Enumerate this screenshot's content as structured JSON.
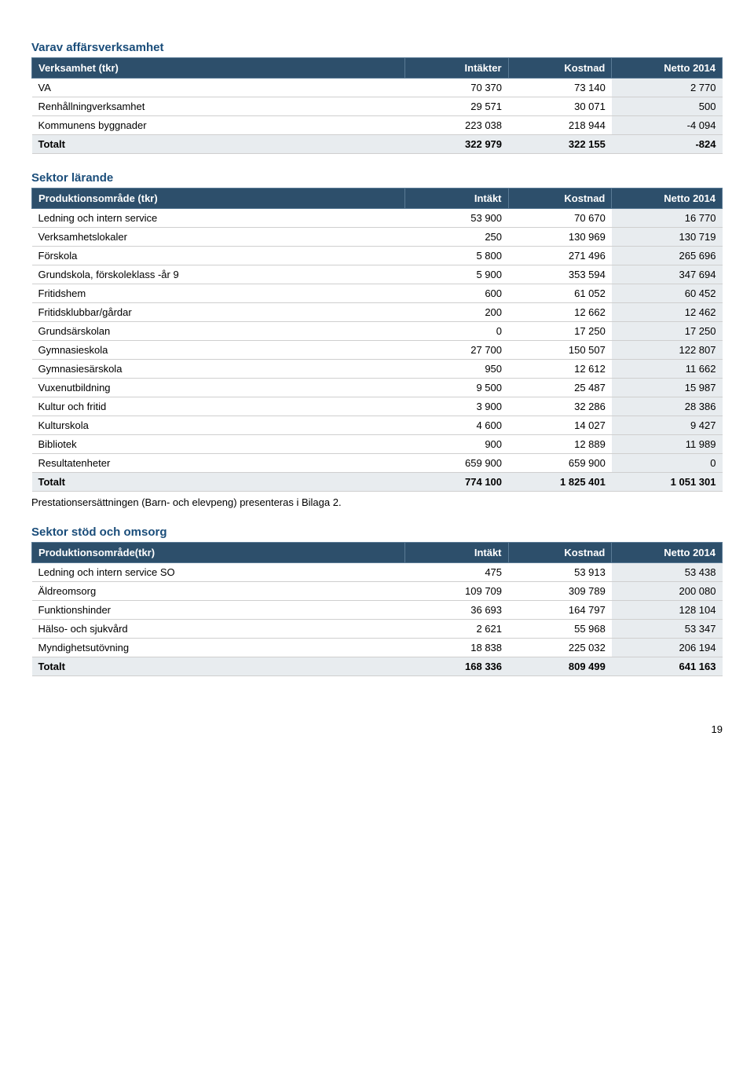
{
  "page_number": "19",
  "colors": {
    "header_bg": "#2d4f6b",
    "header_text": "#ffffff",
    "shaded_row": "#e8ecef",
    "section_title": "#1a4d7a",
    "row_border": "#cfcfcf"
  },
  "section1": {
    "title": "Varav affärsverksamhet",
    "headers": [
      "Verksamhet (tkr)",
      "Intäkter",
      "Kostnad",
      "Netto 2014"
    ],
    "rows": [
      {
        "label": "VA",
        "c1": "70 370",
        "c2": "73 140",
        "c3": "2 770"
      },
      {
        "label": "Renhållningverksamhet",
        "c1": "29 571",
        "c2": "30 071",
        "c3": "500"
      },
      {
        "label": "Kommunens byggnader",
        "c1": "223 038",
        "c2": "218 944",
        "c3": "-4 094"
      }
    ],
    "total": {
      "label": "Totalt",
      "c1": "322 979",
      "c2": "322 155",
      "c3": "-824"
    }
  },
  "section2": {
    "title": "Sektor lärande",
    "headers": [
      "Produktionsområde (tkr)",
      "Intäkt",
      "Kostnad",
      "Netto 2014"
    ],
    "rows": [
      {
        "label": "Ledning och intern service",
        "c1": "53 900",
        "c2": "70 670",
        "c3": "16 770"
      },
      {
        "label": "Verksamhetslokaler",
        "c1": "250",
        "c2": "130 969",
        "c3": "130 719"
      },
      {
        "label": "Förskola",
        "c1": "5 800",
        "c2": "271 496",
        "c3": "265 696"
      },
      {
        "label": "Grundskola, förskoleklass -år 9",
        "c1": "5 900",
        "c2": "353 594",
        "c3": "347 694"
      },
      {
        "label": "Fritidshem",
        "c1": "600",
        "c2": "61 052",
        "c3": "60 452"
      },
      {
        "label": "Fritidsklubbar/gårdar",
        "c1": "200",
        "c2": "12 662",
        "c3": "12 462"
      },
      {
        "label": "Grundsärskolan",
        "c1": "0",
        "c2": "17 250",
        "c3": "17 250"
      },
      {
        "label": "Gymnasieskola",
        "c1": "27 700",
        "c2": "150 507",
        "c3": "122 807"
      },
      {
        "label": "Gymnasiesärskola",
        "c1": "950",
        "c2": "12 612",
        "c3": "11 662"
      },
      {
        "label": "Vuxenutbildning",
        "c1": "9 500",
        "c2": "25 487",
        "c3": "15 987"
      },
      {
        "label": "Kultur och fritid",
        "c1": "3 900",
        "c2": "32 286",
        "c3": "28 386"
      },
      {
        "label": "Kulturskola",
        "c1": "4 600",
        "c2": "14 027",
        "c3": "9 427"
      },
      {
        "label": "Bibliotek",
        "c1": "900",
        "c2": "12 889",
        "c3": "11 989"
      },
      {
        "label": "Resultatenheter",
        "c1": "659 900",
        "c2": "659 900",
        "c3": "0"
      }
    ],
    "total": {
      "label": "Totalt",
      "c1": "774 100",
      "c2": "1 825 401",
      "c3": "1 051 301"
    },
    "note": "Prestationsersättningen (Barn- och elevpeng) presenteras i Bilaga 2."
  },
  "section3": {
    "title": "Sektor stöd och omsorg",
    "headers": [
      "Produktionsområde(tkr)",
      "Intäkt",
      "Kostnad",
      "Netto 2014"
    ],
    "rows": [
      {
        "label": "Ledning och intern service SO",
        "c1": "475",
        "c2": "53 913",
        "c3": "53 438"
      },
      {
        "label": "Äldreomsorg",
        "c1": "109 709",
        "c2": "309 789",
        "c3": "200 080"
      },
      {
        "label": "Funktionshinder",
        "c1": "36 693",
        "c2": "164 797",
        "c3": "128 104"
      },
      {
        "label": "Hälso- och sjukvård",
        "c1": "2 621",
        "c2": "55 968",
        "c3": "53 347"
      },
      {
        "label": "Myndighetsutövning",
        "c1": "18 838",
        "c2": "225 032",
        "c3": "206 194"
      }
    ],
    "total": {
      "label": "Totalt",
      "c1": "168 336",
      "c2": "809 499",
      "c3": "641 163"
    }
  }
}
